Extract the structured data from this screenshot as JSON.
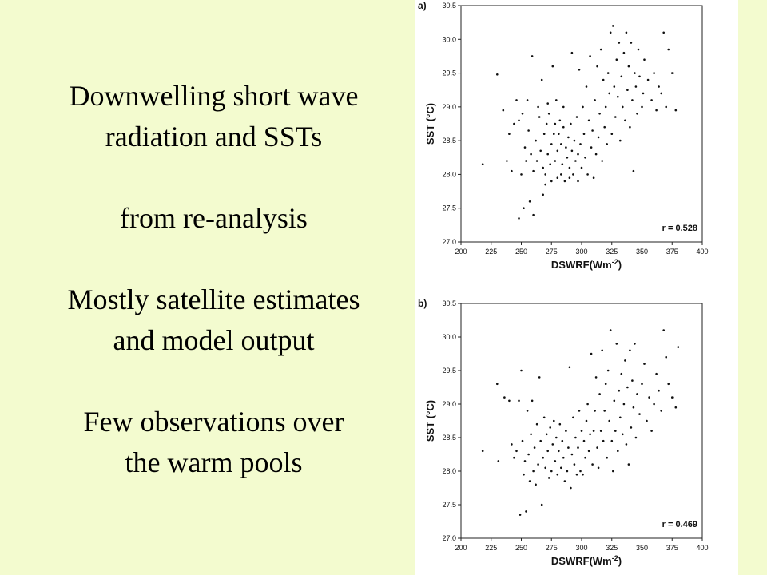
{
  "slide": {
    "blocks": [
      {
        "lines": [
          "Downwelling short wave",
          "radiation and SSTs"
        ]
      },
      {
        "lines": [
          "from re-analysis"
        ]
      },
      {
        "lines": [
          "Mostly satellite estimates",
          "and model output"
        ]
      },
      {
        "lines": [
          "Few observations over",
          "the warm pools"
        ]
      }
    ]
  },
  "chart_data": [
    {
      "type": "scatter",
      "panel_label": "a)",
      "xlabel": "DSWRF(Wm-2)",
      "xlabel_base": "DSWRF(Wm",
      "xlabel_exp": "-2",
      "xlabel_close": ")",
      "ylabel": "SST (°C)",
      "xlim": [
        200,
        400
      ],
      "ylim": [
        27.0,
        30.5
      ],
      "xticks": [
        "200",
        "225",
        "250",
        "275",
        "300",
        "325",
        "350",
        "375",
        "400"
      ],
      "yticks": [
        "27.0",
        "27.5",
        "28.0",
        "28.5",
        "29.0",
        "29.5",
        "30.0",
        "30.5"
      ],
      "annotation": "r = 0.528",
      "points": [
        [
          218,
          28.15
        ],
        [
          230,
          29.48
        ],
        [
          235,
          28.95
        ],
        [
          238,
          28.2
        ],
        [
          240,
          28.6
        ],
        [
          242,
          28.05
        ],
        [
          244,
          28.75
        ],
        [
          246,
          29.1
        ],
        [
          248,
          28.8
        ],
        [
          248,
          27.35
        ],
        [
          250,
          28.0
        ],
        [
          251,
          28.9
        ],
        [
          252,
          27.5
        ],
        [
          253,
          28.4
        ],
        [
          254,
          28.2
        ],
        [
          255,
          29.1
        ],
        [
          256,
          28.65
        ],
        [
          257,
          27.6
        ],
        [
          258,
          28.3
        ],
        [
          259,
          29.75
        ],
        [
          260,
          27.4
        ],
        [
          260,
          28.05
        ],
        [
          262,
          28.5
        ],
        [
          263,
          28.2
        ],
        [
          264,
          29.0
        ],
        [
          265,
          28.85
        ],
        [
          266,
          28.35
        ],
        [
          267,
          29.4
        ],
        [
          268,
          28.1
        ],
        [
          268,
          27.7
        ],
        [
          269,
          28.6
        ],
        [
          270,
          28.0
        ],
        [
          270,
          27.85
        ],
        [
          271,
          28.75
        ],
        [
          272,
          29.05
        ],
        [
          272,
          28.3
        ],
        [
          273,
          28.9
        ],
        [
          274,
          28.15
        ],
        [
          275,
          27.9
        ],
        [
          275,
          28.45
        ],
        [
          276,
          29.6
        ],
        [
          277,
          28.6
        ],
        [
          278,
          28.2
        ],
        [
          278,
          28.75
        ],
        [
          279,
          29.1
        ],
        [
          280,
          28.35
        ],
        [
          280,
          27.95
        ],
        [
          281,
          28.6
        ],
        [
          282,
          28.8
        ],
        [
          283,
          28.0
        ],
        [
          283,
          28.45
        ],
        [
          284,
          28.15
        ],
        [
          285,
          28.7
        ],
        [
          285,
          29.0
        ],
        [
          286,
          27.9
        ],
        [
          287,
          28.4
        ],
        [
          288,
          28.25
        ],
        [
          289,
          28.55
        ],
        [
          290,
          27.95
        ],
        [
          290,
          28.1
        ],
        [
          291,
          28.75
        ],
        [
          292,
          28.35
        ],
        [
          292,
          29.8
        ],
        [
          293,
          28.0
        ],
        [
          294,
          28.5
        ],
        [
          295,
          28.2
        ],
        [
          296,
          28.85
        ],
        [
          297,
          28.3
        ],
        [
          297,
          27.9
        ],
        [
          298,
          29.55
        ],
        [
          299,
          28.45
        ],
        [
          300,
          28.1
        ],
        [
          301,
          29.0
        ],
        [
          302,
          28.6
        ],
        [
          303,
          28.25
        ],
        [
          304,
          29.3
        ],
        [
          305,
          28.0
        ],
        [
          306,
          28.8
        ],
        [
          307,
          29.75
        ],
        [
          308,
          28.4
        ],
        [
          309,
          28.65
        ],
        [
          310,
          27.95
        ],
        [
          311,
          29.1
        ],
        [
          312,
          28.3
        ],
        [
          313,
          29.6
        ],
        [
          314,
          28.55
        ],
        [
          315,
          28.9
        ],
        [
          316,
          29.85
        ],
        [
          317,
          28.2
        ],
        [
          318,
          29.4
        ],
        [
          319,
          28.7
        ],
        [
          320,
          29.0
        ],
        [
          321,
          28.45
        ],
        [
          322,
          29.5
        ],
        [
          323,
          29.2
        ],
        [
          324,
          30.1
        ],
        [
          325,
          28.6
        ],
        [
          326,
          30.2
        ],
        [
          327,
          29.3
        ],
        [
          328,
          28.85
        ],
        [
          329,
          29.7
        ],
        [
          330,
          29.15
        ],
        [
          331,
          29.95
        ],
        [
          332,
          28.5
        ],
        [
          333,
          29.45
        ],
        [
          334,
          29.0
        ],
        [
          335,
          29.8
        ],
        [
          336,
          28.8
        ],
        [
          337,
          30.1
        ],
        [
          338,
          29.25
        ],
        [
          339,
          29.6
        ],
        [
          340,
          28.7
        ],
        [
          341,
          29.95
        ],
        [
          342,
          29.1
        ],
        [
          343,
          28.05
        ],
        [
          344,
          29.5
        ],
        [
          345,
          29.3
        ],
        [
          346,
          28.9
        ],
        [
          347,
          29.85
        ],
        [
          348,
          29.45
        ],
        [
          350,
          29.0
        ],
        [
          351,
          29.2
        ],
        [
          352,
          29.7
        ],
        [
          355,
          29.4
        ],
        [
          358,
          29.1
        ],
        [
          360,
          29.5
        ],
        [
          362,
          28.95
        ],
        [
          364,
          29.3
        ],
        [
          366,
          29.2
        ],
        [
          368,
          30.1
        ],
        [
          370,
          29.0
        ],
        [
          372,
          29.85
        ],
        [
          375,
          29.5
        ],
        [
          378,
          28.95
        ]
      ]
    },
    {
      "type": "scatter",
      "panel_label": "b)",
      "xlabel": "DSWRF(Wm-2)",
      "xlabel_base": "DSWRF(Wm",
      "xlabel_exp": "-2",
      "xlabel_close": ")",
      "ylabel": "SST (°C)",
      "xlim": [
        200,
        400
      ],
      "ylim": [
        27.0,
        30.5
      ],
      "xticks": [
        "200",
        "225",
        "250",
        "275",
        "300",
        "325",
        "350",
        "375",
        "400"
      ],
      "yticks": [
        "27.0",
        "27.5",
        "28.0",
        "28.5",
        "29.0",
        "29.5",
        "30.0",
        "30.5"
      ],
      "annotation": "r = 0.469",
      "points": [
        [
          218,
          28.3
        ],
        [
          230,
          29.3
        ],
        [
          231,
          28.15
        ],
        [
          236,
          29.1
        ],
        [
          240,
          29.05
        ],
        [
          242,
          28.4
        ],
        [
          244,
          28.2
        ],
        [
          246,
          28.3
        ],
        [
          248,
          29.05
        ],
        [
          249,
          27.35
        ],
        [
          250,
          29.5
        ],
        [
          251,
          28.45
        ],
        [
          252,
          27.95
        ],
        [
          253,
          28.15
        ],
        [
          254,
          27.4
        ],
        [
          255,
          28.9
        ],
        [
          256,
          28.25
        ],
        [
          257,
          27.85
        ],
        [
          258,
          28.55
        ],
        [
          259,
          29.05
        ],
        [
          260,
          28.0
        ],
        [
          261,
          28.35
        ],
        [
          262,
          27.8
        ],
        [
          263,
          28.7
        ],
        [
          264,
          28.1
        ],
        [
          265,
          29.4
        ],
        [
          266,
          28.45
        ],
        [
          267,
          27.5
        ],
        [
          268,
          28.2
        ],
        [
          269,
          28.8
        ],
        [
          270,
          28.05
        ],
        [
          271,
          28.55
        ],
        [
          272,
          28.3
        ],
        [
          273,
          27.9
        ],
        [
          274,
          28.65
        ],
        [
          275,
          28.0
        ],
        [
          276,
          28.4
        ],
        [
          277,
          28.75
        ],
        [
          278,
          28.15
        ],
        [
          279,
          28.5
        ],
        [
          280,
          27.95
        ],
        [
          281,
          28.3
        ],
        [
          282,
          28.7
        ],
        [
          283,
          28.05
        ],
        [
          284,
          28.45
        ],
        [
          285,
          28.2
        ],
        [
          286,
          27.85
        ],
        [
          287,
          28.6
        ],
        [
          288,
          28.0
        ],
        [
          289,
          28.35
        ],
        [
          290,
          29.55
        ],
        [
          291,
          27.75
        ],
        [
          292,
          28.25
        ],
        [
          293,
          28.8
        ],
        [
          294,
          28.1
        ],
        [
          295,
          28.5
        ],
        [
          296,
          27.95
        ],
        [
          297,
          28.35
        ],
        [
          298,
          28.9
        ],
        [
          299,
          28.0
        ],
        [
          300,
          28.6
        ],
        [
          301,
          27.95
        ],
        [
          302,
          28.45
        ],
        [
          303,
          28.2
        ],
        [
          304,
          28.75
        ],
        [
          305,
          29.0
        ],
        [
          306,
          28.3
        ],
        [
          307,
          28.55
        ],
        [
          308,
          29.75
        ],
        [
          309,
          28.1
        ],
        [
          310,
          28.6
        ],
        [
          311,
          28.9
        ],
        [
          312,
          29.4
        ],
        [
          313,
          28.35
        ],
        [
          314,
          28.05
        ],
        [
          315,
          29.15
        ],
        [
          316,
          28.6
        ],
        [
          317,
          29.8
        ],
        [
          318,
          28.45
        ],
        [
          319,
          28.9
        ],
        [
          320,
          29.3
        ],
        [
          321,
          28.2
        ],
        [
          322,
          29.5
        ],
        [
          323,
          28.75
        ],
        [
          324,
          30.1
        ],
        [
          325,
          28.45
        ],
        [
          326,
          28.0
        ],
        [
          327,
          29.05
        ],
        [
          328,
          28.6
        ],
        [
          329,
          29.9
        ],
        [
          330,
          28.3
        ],
        [
          331,
          29.2
        ],
        [
          332,
          28.8
        ],
        [
          333,
          29.45
        ],
        [
          334,
          28.55
        ],
        [
          335,
          29.0
        ],
        [
          336,
          29.65
        ],
        [
          337,
          28.4
        ],
        [
          338,
          29.25
        ],
        [
          339,
          28.1
        ],
        [
          340,
          29.8
        ],
        [
          341,
          28.65
        ],
        [
          342,
          29.35
        ],
        [
          343,
          28.95
        ],
        [
          344,
          29.9
        ],
        [
          345,
          28.5
        ],
        [
          346,
          29.15
        ],
        [
          348,
          28.85
        ],
        [
          350,
          29.3
        ],
        [
          352,
          29.6
        ],
        [
          354,
          28.75
        ],
        [
          356,
          29.1
        ],
        [
          358,
          28.6
        ],
        [
          360,
          29.0
        ],
        [
          362,
          29.45
        ],
        [
          364,
          29.2
        ],
        [
          366,
          28.9
        ],
        [
          368,
          30.1
        ],
        [
          370,
          29.7
        ],
        [
          372,
          29.3
        ],
        [
          375,
          29.1
        ],
        [
          378,
          28.95
        ],
        [
          380,
          29.85
        ]
      ]
    }
  ]
}
